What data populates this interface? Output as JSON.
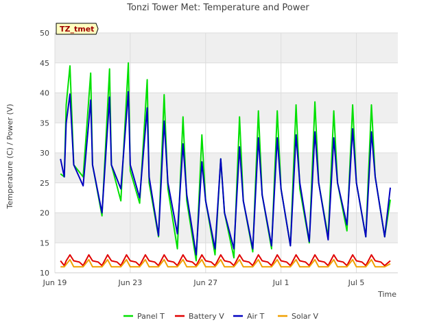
{
  "chart_data": {
    "type": "line",
    "title": "Tonzi Tower Met: Temperature and Power",
    "xlabel": "Time",
    "ylabel": "Temperature (C) / Power (V)",
    "badge": "TZ_tmet",
    "xlim": [
      0,
      18.2
    ],
    "ylim": [
      10,
      50
    ],
    "x_ticks": [
      {
        "x": 0,
        "label": "Jun 19"
      },
      {
        "x": 4,
        "label": "Jun 23"
      },
      {
        "x": 8,
        "label": "Jun 27"
      },
      {
        "x": 12,
        "label": "Jul 1"
      },
      {
        "x": 16,
        "label": "Jul 5"
      }
    ],
    "y_ticks": [
      10,
      15,
      20,
      25,
      30,
      35,
      40,
      45,
      50
    ],
    "grid": true,
    "legend_position": "bottom",
    "series": [
      {
        "name": "Panel T",
        "color": "#00e000",
        "x": [
          0.3,
          0.5,
          0.6,
          0.8,
          1.0,
          1.5,
          1.9,
          2.0,
          2.5,
          2.9,
          3.0,
          3.5,
          3.9,
          4.0,
          4.5,
          4.9,
          5.0,
          5.5,
          5.8,
          6.0,
          6.5,
          6.8,
          7.0,
          7.5,
          7.8,
          8.0,
          8.5,
          8.8,
          9.0,
          9.5,
          9.8,
          10.0,
          10.5,
          10.8,
          11.0,
          11.5,
          11.8,
          12.0,
          12.5,
          12.8,
          13.0,
          13.5,
          13.8,
          14.0,
          14.5,
          14.8,
          15.0,
          15.5,
          15.8,
          16.0,
          16.5,
          16.8,
          17.0,
          17.5,
          17.8
        ],
        "y": [
          26.5,
          26,
          38,
          44.5,
          28,
          26,
          43.3,
          28,
          19.5,
          44,
          28,
          22,
          45,
          27,
          21.6,
          42.2,
          25,
          16,
          39.7,
          24,
          14,
          36,
          22,
          12,
          33,
          22,
          13,
          29,
          20,
          12.5,
          36,
          22,
          13.5,
          37,
          23,
          14,
          37,
          24,
          14.5,
          38,
          24,
          15,
          38.5,
          25,
          16,
          37,
          25,
          17,
          38,
          25,
          16,
          38,
          26,
          16,
          22.2
        ]
      },
      {
        "name": "Battery V",
        "color": "#e00000",
        "x": [
          0.3,
          0.5,
          0.6,
          0.8,
          1.0,
          1.3,
          1.5,
          1.8,
          2.0,
          2.3,
          2.5,
          2.8,
          3.0,
          3.3,
          3.5,
          3.8,
          4.0,
          4.3,
          4.5,
          4.8,
          5.0,
          5.3,
          5.5,
          5.8,
          6.0,
          6.3,
          6.5,
          6.8,
          7.0,
          7.3,
          7.5,
          7.8,
          8.0,
          8.3,
          8.5,
          8.8,
          9.0,
          9.3,
          9.5,
          9.8,
          10.0,
          10.3,
          10.5,
          10.8,
          11.0,
          11.3,
          11.5,
          11.8,
          12.0,
          12.3,
          12.5,
          12.8,
          13.0,
          13.3,
          13.5,
          13.8,
          14.0,
          14.3,
          14.5,
          14.8,
          15.0,
          15.3,
          15.5,
          15.8,
          16.0,
          16.3,
          16.5,
          16.8,
          17.0,
          17.3,
          17.5,
          17.8
        ],
        "y": [
          12,
          11.2,
          12,
          13,
          12,
          11.8,
          11.2,
          13,
          12,
          11.8,
          11.2,
          13,
          12,
          11.8,
          11.2,
          13,
          12,
          11.8,
          11.2,
          13,
          12,
          11.8,
          11.2,
          13,
          12,
          11.8,
          11.2,
          13,
          12,
          11.8,
          11.2,
          13,
          12,
          11.8,
          11.2,
          13,
          12,
          11.8,
          11.2,
          13,
          12,
          11.8,
          11.2,
          13,
          12,
          11.8,
          11.2,
          13,
          12,
          11.8,
          11.2,
          13,
          12,
          11.8,
          11.2,
          13,
          12,
          11.8,
          11.2,
          13,
          12,
          11.8,
          11.2,
          13,
          12,
          11.8,
          11.2,
          13,
          12,
          11.8,
          11.2,
          12
        ]
      },
      {
        "name": "Air T",
        "color": "#0000c0",
        "x": [
          0.3,
          0.5,
          0.6,
          0.8,
          1.0,
          1.5,
          1.9,
          2.0,
          2.5,
          2.9,
          3.0,
          3.5,
          3.9,
          4.0,
          4.5,
          4.9,
          5.0,
          5.5,
          5.8,
          6.0,
          6.5,
          6.8,
          7.0,
          7.5,
          7.8,
          8.0,
          8.5,
          8.8,
          9.0,
          9.5,
          9.8,
          10.0,
          10.5,
          10.8,
          11.0,
          11.5,
          11.8,
          12.0,
          12.5,
          12.8,
          13.0,
          13.5,
          13.8,
          14.0,
          14.5,
          14.8,
          15.0,
          15.5,
          15.8,
          16.0,
          16.5,
          16.8,
          17.0,
          17.5,
          17.8
        ],
        "y": [
          29,
          26,
          35,
          39.8,
          28,
          24.5,
          38.8,
          28,
          20,
          39.3,
          28,
          24,
          40.2,
          28,
          22.5,
          37.5,
          26,
          16.2,
          35.3,
          25,
          16.5,
          31.5,
          23,
          13,
          28.5,
          22,
          14,
          29,
          20,
          14,
          31,
          22,
          14,
          32.5,
          23,
          14.5,
          32.5,
          24,
          14.5,
          33,
          25,
          15.2,
          33.5,
          25,
          15.5,
          32.5,
          25,
          18,
          34,
          25,
          16,
          33.5,
          26,
          16,
          24.2
        ]
      },
      {
        "name": "Solar V",
        "color": "#f0a000",
        "x": [
          0.3,
          0.5,
          0.8,
          1.0,
          1.5,
          1.8,
          2.0,
          2.5,
          2.8,
          3.0,
          3.5,
          3.8,
          4.0,
          4.5,
          4.8,
          5.0,
          5.5,
          5.8,
          6.0,
          6.5,
          6.8,
          7.0,
          7.5,
          7.8,
          8.0,
          8.5,
          8.8,
          9.0,
          9.5,
          9.8,
          10.0,
          10.5,
          10.8,
          11.0,
          11.5,
          11.8,
          12.0,
          12.5,
          12.8,
          13.0,
          13.5,
          13.8,
          14.0,
          14.5,
          14.8,
          15.0,
          15.5,
          15.8,
          16.0,
          16.5,
          16.8,
          17.0,
          17.5,
          17.8
        ],
        "y": [
          11,
          11,
          12.2,
          11,
          11,
          12.2,
          11,
          11,
          12.2,
          11,
          11,
          12.2,
          11,
          11,
          12.2,
          11,
          11,
          12.2,
          11,
          11,
          12.2,
          11,
          11,
          12.2,
          11,
          11,
          12.2,
          11,
          11,
          12.2,
          11,
          11,
          12.2,
          11,
          11,
          12.2,
          11,
          11,
          12.2,
          11,
          11,
          12.2,
          11,
          11,
          12.2,
          11,
          11,
          12.2,
          11,
          11,
          12.2,
          11,
          11,
          11.5
        ]
      }
    ]
  }
}
